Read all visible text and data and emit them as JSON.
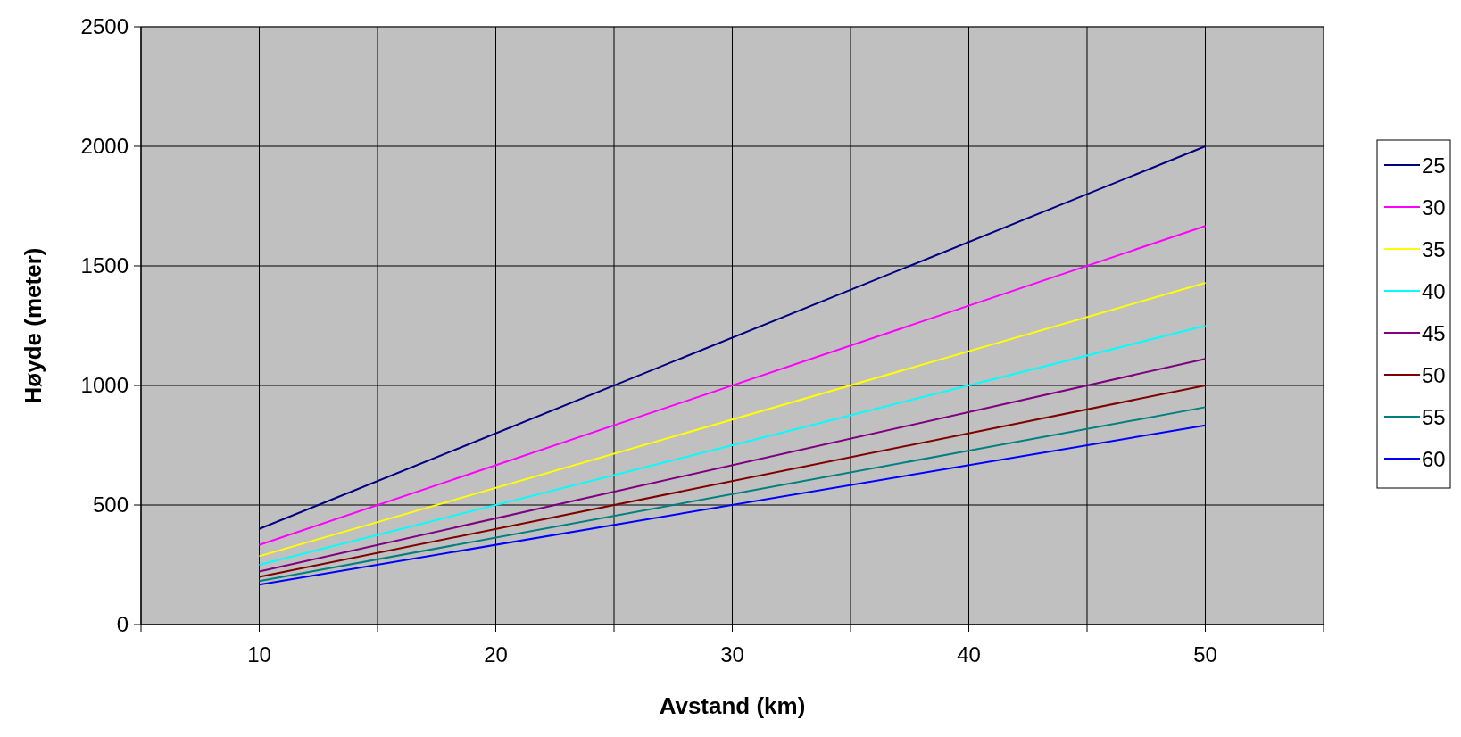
{
  "chart_data": {
    "type": "line",
    "xlabel": "Avstand (km)",
    "ylabel": "Høyde (meter)",
    "x": [
      10,
      50
    ],
    "xlim": [
      5,
      55
    ],
    "xticks": [
      {
        "value": 5,
        "label": null
      },
      10,
      {
        "value": 15,
        "label": null
      },
      20,
      {
        "value": 25,
        "label": null
      },
      30,
      {
        "value": 35,
        "label": null
      },
      40,
      {
        "value": 45,
        "label": null
      },
      50,
      {
        "value": 55,
        "label": null
      }
    ],
    "ylim": [
      0,
      2500
    ],
    "yticks": [
      0,
      500,
      1000,
      1500,
      2000,
      2500
    ],
    "grid": true,
    "legend": "right",
    "marker": "none",
    "line_style": "solid",
    "series": [
      {
        "name": "25",
        "color": "#000080",
        "values": [
          400,
          2000
        ]
      },
      {
        "name": "30",
        "color": "#ff00ff",
        "values": [
          333,
          1667
        ]
      },
      {
        "name": "35",
        "color": "#ffff00",
        "values": [
          286,
          1429
        ]
      },
      {
        "name": "40",
        "color": "#00ffff",
        "values": [
          250,
          1250
        ]
      },
      {
        "name": "45",
        "color": "#800080",
        "values": [
          222,
          1111
        ]
      },
      {
        "name": "50",
        "color": "#800000",
        "values": [
          200,
          1000
        ]
      },
      {
        "name": "55",
        "color": "#008080",
        "values": [
          182,
          909
        ]
      },
      {
        "name": "60",
        "color": "#0000ff",
        "values": [
          167,
          833
        ]
      }
    ]
  }
}
